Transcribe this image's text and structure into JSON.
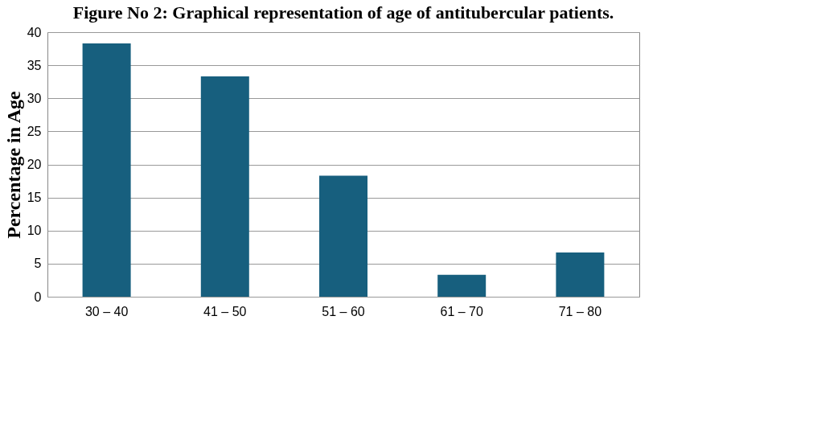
{
  "chart_data": {
    "type": "bar",
    "title": "Figure No 2: Graphical representation of age of antitubercular patients.",
    "ylabel": "Percentage in Age",
    "categories": [
      "30 – 40",
      "41 – 50",
      "51 – 60",
      "61 – 70",
      "71 – 80"
    ],
    "values": [
      38.3,
      33.3,
      18.3,
      3.3,
      6.7
    ],
    "color": "#175f7e",
    "ylim": [
      0,
      40
    ],
    "yticks": [
      0,
      5,
      10,
      15,
      20,
      25,
      30,
      35,
      40
    ],
    "grid": "y"
  }
}
